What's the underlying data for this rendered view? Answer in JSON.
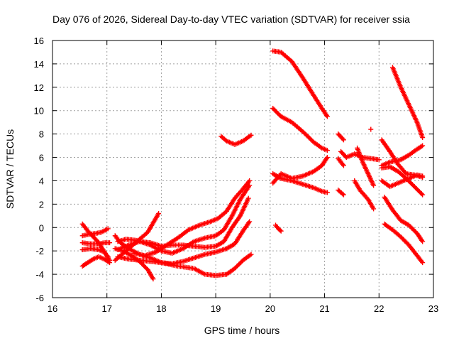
{
  "chart_data": {
    "type": "scatter",
    "title": "Day 076 of 2026, Sidereal Day-to-day VTEC variation (SDTVAR) for receiver ssia",
    "xlabel": "GPS time / hours",
    "ylabel": "SDTVAR / TECUs",
    "xlim": [
      16,
      23
    ],
    "ylim": [
      -6,
      16
    ],
    "xticks": [
      16,
      17,
      18,
      19,
      20,
      21,
      22,
      23
    ],
    "yticks": [
      -6,
      -4,
      -2,
      0,
      2,
      4,
      6,
      8,
      10,
      12,
      14,
      16
    ],
    "grid": true,
    "marker": "plus",
    "color": "#ff0000",
    "series": [
      {
        "name": "s1",
        "points": [
          [
            16.55,
            0.3
          ],
          [
            16.65,
            -0.3
          ],
          [
            16.75,
            -0.8
          ],
          [
            16.85,
            -1.3
          ],
          [
            16.9,
            -1.7
          ],
          [
            16.97,
            -2.2
          ],
          [
            17.05,
            -2.8
          ]
        ]
      },
      {
        "name": "s2",
        "points": [
          [
            16.55,
            -3.3
          ],
          [
            16.65,
            -3.0
          ],
          [
            16.75,
            -2.7
          ],
          [
            16.85,
            -2.5
          ],
          [
            16.95,
            -2.7
          ],
          [
            17.05,
            -3.0
          ]
        ]
      },
      {
        "name": "s3",
        "points": [
          [
            16.55,
            -1.3
          ],
          [
            16.7,
            -1.4
          ],
          [
            16.85,
            -1.4
          ],
          [
            16.95,
            -1.3
          ],
          [
            17.05,
            -1.3
          ]
        ]
      },
      {
        "name": "s4",
        "points": [
          [
            16.55,
            -0.7
          ],
          [
            16.65,
            -0.6
          ],
          [
            16.8,
            -0.5
          ],
          [
            16.9,
            -0.4
          ],
          [
            17.02,
            -0.1
          ]
        ]
      },
      {
        "name": "s5",
        "points": [
          [
            16.55,
            -1.9
          ],
          [
            16.7,
            -1.8
          ],
          [
            16.85,
            -1.9
          ],
          [
            16.95,
            -2.1
          ],
          [
            17.02,
            -2.5
          ]
        ]
      },
      {
        "name": "s6",
        "points": [
          [
            17.15,
            -1.8
          ],
          [
            17.3,
            -2.0
          ],
          [
            17.45,
            -2.4
          ],
          [
            17.6,
            -2.9
          ],
          [
            17.75,
            -3.6
          ],
          [
            17.85,
            -4.4
          ]
        ]
      },
      {
        "name": "s7",
        "points": [
          [
            17.15,
            -2.8
          ],
          [
            17.3,
            -2.2
          ],
          [
            17.45,
            -1.6
          ],
          [
            17.6,
            -1.0
          ],
          [
            17.75,
            -0.4
          ],
          [
            17.85,
            0.4
          ],
          [
            17.95,
            1.2
          ]
        ]
      },
      {
        "name": "s8",
        "points": [
          [
            17.15,
            -0.7
          ],
          [
            17.25,
            -1.3
          ],
          [
            17.4,
            -1.8
          ],
          [
            17.6,
            -2.3
          ],
          [
            17.8,
            -2.6
          ],
          [
            18.0,
            -3.0
          ],
          [
            18.3,
            -3.3
          ],
          [
            18.6,
            -3.5
          ],
          [
            18.8,
            -4.0
          ],
          [
            19.0,
            -4.1
          ],
          [
            19.2,
            -4.0
          ],
          [
            19.35,
            -3.5
          ],
          [
            19.5,
            -2.8
          ],
          [
            19.65,
            -2.3
          ]
        ]
      },
      {
        "name": "s9",
        "points": [
          [
            17.2,
            -2.5
          ],
          [
            17.4,
            -2.7
          ],
          [
            17.6,
            -2.8
          ],
          [
            17.8,
            -2.9
          ],
          [
            18.0,
            -3.0
          ],
          [
            18.2,
            -3.1
          ],
          [
            18.4,
            -2.9
          ],
          [
            18.6,
            -2.6
          ],
          [
            18.8,
            -2.3
          ],
          [
            19.0,
            -2.1
          ],
          [
            19.2,
            -1.8
          ],
          [
            19.35,
            -1.4
          ],
          [
            19.5,
            -0.3
          ],
          [
            19.62,
            0.5
          ]
        ]
      },
      {
        "name": "s10",
        "points": [
          [
            17.2,
            -1.9
          ],
          [
            17.4,
            -1.5
          ],
          [
            17.6,
            -1.2
          ],
          [
            17.8,
            -1.3
          ],
          [
            18.0,
            -1.6
          ],
          [
            18.2,
            -1.5
          ],
          [
            18.4,
            -1.5
          ],
          [
            18.6,
            -1.6
          ],
          [
            18.8,
            -1.7
          ],
          [
            19.0,
            -1.6
          ],
          [
            19.15,
            -1.2
          ],
          [
            19.3,
            0.0
          ],
          [
            19.45,
            1.0
          ],
          [
            19.6,
            2.5
          ]
        ]
      },
      {
        "name": "s11",
        "points": [
          [
            17.2,
            -1.2
          ],
          [
            17.35,
            -1.0
          ],
          [
            17.55,
            -1.1
          ],
          [
            17.8,
            -1.5
          ],
          [
            18.0,
            -2.0
          ],
          [
            18.2,
            -2.2
          ],
          [
            18.4,
            -1.8
          ],
          [
            18.6,
            -1.2
          ],
          [
            18.8,
            -0.9
          ],
          [
            19.0,
            -0.7
          ],
          [
            19.15,
            -0.2
          ],
          [
            19.3,
            1.0
          ],
          [
            19.45,
            2.4
          ],
          [
            19.62,
            3.6
          ]
        ]
      },
      {
        "name": "s12",
        "points": [
          [
            17.5,
            -2.2
          ],
          [
            17.7,
            -2.4
          ],
          [
            17.9,
            -2.1
          ],
          [
            18.1,
            -1.5
          ],
          [
            18.3,
            -0.9
          ],
          [
            18.5,
            -0.2
          ],
          [
            18.7,
            0.2
          ],
          [
            18.9,
            0.5
          ],
          [
            19.05,
            0.8
          ],
          [
            19.2,
            1.4
          ],
          [
            19.35,
            2.5
          ],
          [
            19.5,
            3.3
          ],
          [
            19.62,
            4.0
          ]
        ]
      },
      {
        "name": "s13",
        "points": [
          [
            19.1,
            7.8
          ],
          [
            19.2,
            7.4
          ],
          [
            19.35,
            7.1
          ],
          [
            19.5,
            7.4
          ],
          [
            19.65,
            7.9
          ]
        ]
      },
      {
        "name": "s14",
        "points": [
          [
            20.05,
            15.1
          ],
          [
            20.2,
            15.0
          ],
          [
            20.4,
            14.2
          ],
          [
            20.6,
            12.8
          ],
          [
            20.8,
            11.3
          ],
          [
            20.95,
            10.2
          ],
          [
            21.05,
            9.5
          ]
        ]
      },
      {
        "name": "s15",
        "points": [
          [
            20.05,
            10.2
          ],
          [
            20.2,
            9.5
          ],
          [
            20.4,
            9.0
          ],
          [
            20.6,
            8.2
          ],
          [
            20.8,
            7.3
          ],
          [
            20.95,
            6.8
          ],
          [
            21.05,
            6.6
          ]
        ]
      },
      {
        "name": "s16",
        "points": [
          [
            20.05,
            4.6
          ],
          [
            20.2,
            4.2
          ],
          [
            20.4,
            4.0
          ],
          [
            20.6,
            3.7
          ],
          [
            20.8,
            3.4
          ],
          [
            20.95,
            3.1
          ],
          [
            21.05,
            3.0
          ]
        ]
      },
      {
        "name": "s17",
        "points": [
          [
            20.05,
            3.8
          ],
          [
            20.2,
            4.6
          ],
          [
            20.4,
            4.2
          ],
          [
            20.6,
            4.4
          ],
          [
            20.8,
            4.8
          ],
          [
            20.95,
            5.3
          ],
          [
            21.05,
            6.0
          ]
        ]
      },
      {
        "name": "s18",
        "points": [
          [
            20.1,
            0.2
          ],
          [
            20.15,
            -0.1
          ],
          [
            20.2,
            -0.3
          ]
        ]
      },
      {
        "name": "s19",
        "points": [
          [
            21.25,
            8.0
          ],
          [
            21.35,
            7.5
          ]
        ]
      },
      {
        "name": "s20",
        "points": [
          [
            21.3,
            6.5
          ],
          [
            21.4,
            6.0
          ],
          [
            21.55,
            6.3
          ],
          [
            21.7,
            6.0
          ],
          [
            21.85,
            5.9
          ],
          [
            22.0,
            5.8
          ]
        ]
      },
      {
        "name": "s21",
        "points": [
          [
            21.25,
            5.9
          ],
          [
            21.35,
            5.3
          ]
        ]
      },
      {
        "name": "s22",
        "points": [
          [
            21.25,
            3.2
          ],
          [
            21.35,
            2.8
          ]
        ]
      },
      {
        "name": "s23",
        "points": [
          [
            21.6,
            6.8
          ],
          [
            21.7,
            5.6
          ],
          [
            21.8,
            4.6
          ],
          [
            21.9,
            3.6
          ]
        ]
      },
      {
        "name": "s24",
        "points": [
          [
            21.55,
            4.0
          ],
          [
            21.65,
            3.2
          ],
          [
            21.8,
            2.4
          ],
          [
            21.9,
            1.6
          ]
        ]
      },
      {
        "name": "s25",
        "points": [
          [
            21.85,
            8.4
          ]
        ]
      },
      {
        "name": "s26",
        "points": [
          [
            22.25,
            13.7
          ],
          [
            22.4,
            12.0
          ],
          [
            22.55,
            10.5
          ],
          [
            22.7,
            9.0
          ],
          [
            22.8,
            7.7
          ]
        ]
      },
      {
        "name": "s27",
        "points": [
          [
            22.05,
            7.5
          ],
          [
            22.2,
            6.5
          ],
          [
            22.35,
            5.4
          ],
          [
            22.5,
            4.6
          ],
          [
            22.65,
            4.5
          ],
          [
            22.8,
            4.3
          ]
        ]
      },
      {
        "name": "s28",
        "points": [
          [
            22.05,
            5.3
          ],
          [
            22.2,
            5.6
          ],
          [
            22.4,
            5.8
          ],
          [
            22.55,
            6.2
          ],
          [
            22.7,
            6.7
          ],
          [
            22.8,
            7.0
          ]
        ]
      },
      {
        "name": "s29",
        "points": [
          [
            22.05,
            5.1
          ],
          [
            22.2,
            5.2
          ],
          [
            22.35,
            4.8
          ],
          [
            22.5,
            4.2
          ],
          [
            22.65,
            3.5
          ],
          [
            22.8,
            2.8
          ]
        ]
      },
      {
        "name": "s30",
        "points": [
          [
            22.05,
            4.0
          ],
          [
            22.2,
            3.5
          ],
          [
            22.35,
            3.8
          ],
          [
            22.55,
            4.2
          ],
          [
            22.7,
            4.5
          ],
          [
            22.8,
            4.4
          ]
        ]
      },
      {
        "name": "s31",
        "points": [
          [
            22.1,
            2.6
          ],
          [
            22.25,
            1.5
          ],
          [
            22.4,
            0.6
          ],
          [
            22.55,
            0.2
          ],
          [
            22.7,
            -0.5
          ],
          [
            22.8,
            -1.2
          ]
        ]
      },
      {
        "name": "s32",
        "points": [
          [
            22.1,
            0.3
          ],
          [
            22.25,
            -0.2
          ],
          [
            22.4,
            -0.8
          ],
          [
            22.55,
            -1.5
          ],
          [
            22.7,
            -2.4
          ],
          [
            22.8,
            -3.0
          ]
        ]
      }
    ]
  }
}
